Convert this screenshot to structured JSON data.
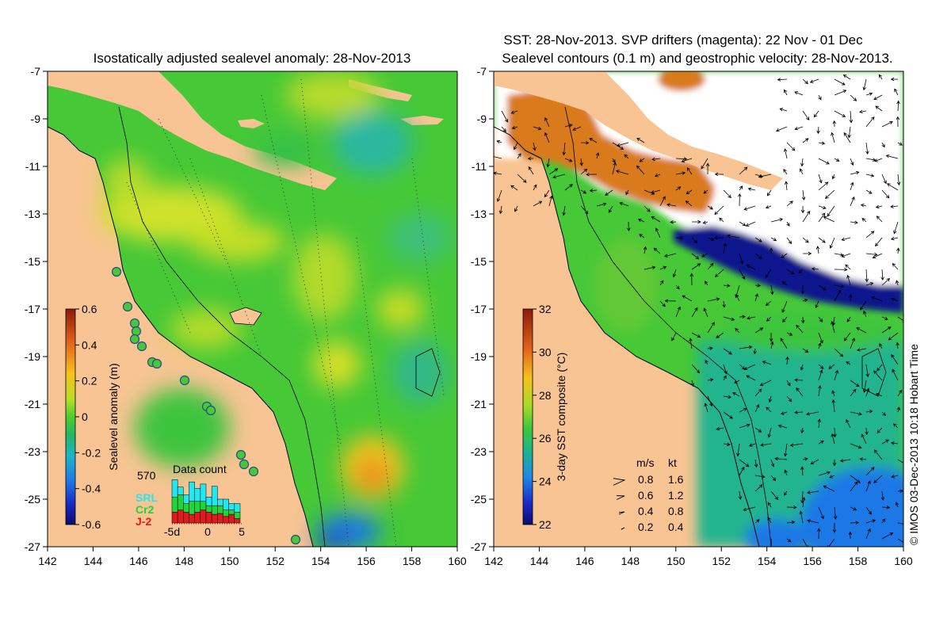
{
  "left_panel": {
    "title": "Isostatically adjusted sealevel anomaly: 28-Nov-2013",
    "colorbar": {
      "label": "Sealevel anomaly (m)",
      "ticks": [
        "0.6",
        "0.4",
        "0.2",
        "0",
        "-0.2",
        "-0.4",
        "-0.6"
      ]
    },
    "data_count": {
      "title": "Data count",
      "total": "570",
      "legend": [
        {
          "name": "SRL",
          "color": "#22e6f0"
        },
        {
          "name": "Cr2",
          "color": "#1fd63a"
        },
        {
          "name": "J-2",
          "color": "#e11b1b"
        }
      ],
      "axis_labels": [
        "-5d",
        "0",
        "5"
      ],
      "days": [
        {
          "srl": 0.4,
          "cr2": 0.35,
          "j2": 0.25
        },
        {
          "srl": 0.18,
          "cr2": 0.35,
          "j2": 0.3
        },
        {
          "srl": 0.2,
          "cr2": 0.2,
          "j2": 0.25
        },
        {
          "srl": 0.45,
          "cr2": 0.3,
          "j2": 0.2
        },
        {
          "srl": 0.3,
          "cr2": 0.25,
          "j2": 0.25
        },
        {
          "srl": 0.4,
          "cr2": 0.2,
          "j2": 0.3
        },
        {
          "srl": 0.2,
          "cr2": 0.15,
          "j2": 0.25
        },
        {
          "srl": 0.45,
          "cr2": 0.2,
          "j2": 0.2
        },
        {
          "srl": 0.15,
          "cr2": 0.18,
          "j2": 0.22
        },
        {
          "srl": 0.25,
          "cr2": 0.15,
          "j2": 0.15
        },
        {
          "srl": 0.15,
          "cr2": 0.1,
          "j2": 0.2
        },
        {
          "srl": 0.2,
          "cr2": 0.15,
          "j2": 0.1
        }
      ]
    }
  },
  "right_panel": {
    "title_line1": "SST: 28-Nov-2013. SVP drifters (magenta): 22 Nov - 01 Dec",
    "title_line2": "Sealevel contours (0.1 m) and geostrophic velocity: 28-Nov-2013.",
    "colorbar": {
      "label": "3-day SST composite (°C)",
      "ticks": [
        "32",
        "30",
        "28",
        "26",
        "24",
        "22"
      ]
    },
    "speed_legend": {
      "header_ms": "m/s",
      "header_kt": "kt",
      "rows": [
        {
          "ms": "0.8",
          "kt": "1.6"
        },
        {
          "ms": "0.6",
          "kt": "1.2"
        },
        {
          "ms": "0.4",
          "kt": "0.8"
        },
        {
          "ms": "0.2",
          "kt": "0.4"
        }
      ]
    }
  },
  "axes": {
    "lat_ticks": [
      "-7",
      "-9",
      "-11",
      "-13",
      "-15",
      "-17",
      "-19",
      "-21",
      "-23",
      "-25",
      "-27"
    ],
    "lon_ticks": [
      "142",
      "144",
      "146",
      "148",
      "150",
      "152",
      "154",
      "156",
      "158",
      "160"
    ]
  },
  "credit": "© IMOS 03-Dec-2013 10:18 Hobart Time",
  "colors": {
    "land": "#f8c493",
    "ocean_green": "#46c837",
    "anom_high": "#f0d31c",
    "anom_low": "#1e64e6",
    "sst_warm": "#d97a1c",
    "sst_cold": "#0a128c"
  }
}
